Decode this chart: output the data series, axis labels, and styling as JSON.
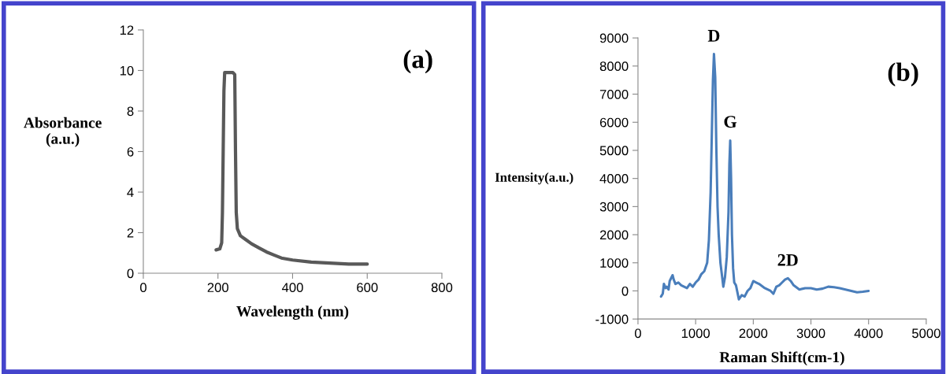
{
  "chart_data": [
    {
      "type": "line",
      "title": "(a)",
      "xlabel": "Wavelength (nm)",
      "ylabel": "Absorbance\n(a.u.)",
      "xlim": [
        0,
        800
      ],
      "xticks": [
        0,
        200,
        400,
        600,
        800
      ],
      "ylim": [
        0,
        12
      ],
      "yticks": [
        0,
        2,
        4,
        6,
        8,
        10,
        12
      ],
      "grid": false,
      "legend": false,
      "marker": "none",
      "line_style": "solid",
      "series": [
        {
          "color": "#595959",
          "x": [
            195,
            205,
            210,
            212,
            214,
            216,
            218,
            230,
            240,
            245,
            247,
            249,
            252,
            260,
            275,
            290,
            310,
            330,
            350,
            370,
            400,
            450,
            500,
            550,
            600
          ],
          "values": [
            1.15,
            1.2,
            1.5,
            3,
            6,
            9,
            9.9,
            9.9,
            9.9,
            9.8,
            6,
            3,
            2.2,
            1.85,
            1.65,
            1.45,
            1.25,
            1.05,
            0.9,
            0.75,
            0.65,
            0.55,
            0.5,
            0.45,
            0.45
          ]
        }
      ]
    },
    {
      "type": "line",
      "title": "(b)",
      "xlabel": "Raman Shift(cm-1)",
      "ylabel": "Intensity(a.u.)",
      "xlim": [
        0,
        5000
      ],
      "xticks": [
        0,
        1000,
        2000,
        3000,
        4000,
        5000
      ],
      "ylim": [
        -1000,
        9000
      ],
      "yticks": [
        -1000,
        0,
        1000,
        2000,
        3000,
        4000,
        5000,
        6000,
        7000,
        8000,
        9000
      ],
      "grid": false,
      "legend": false,
      "marker": "none",
      "line_style": "solid",
      "annotations": [
        {
          "text": "D",
          "x": 1318,
          "y": 8430
        },
        {
          "text": "G",
          "x": 1600,
          "y": 5370
        },
        {
          "text": "2D",
          "x": 2600,
          "y": 450
        }
      ],
      "series": [
        {
          "color": "#4a7ebb",
          "x": [
            400,
            430,
            450,
            480,
            500,
            530,
            550,
            600,
            620,
            650,
            700,
            750,
            800,
            850,
            900,
            950,
            1000,
            1050,
            1100,
            1150,
            1200,
            1230,
            1260,
            1280,
            1300,
            1318,
            1340,
            1360,
            1380,
            1400,
            1430,
            1460,
            1480,
            1510,
            1540,
            1570,
            1585,
            1600,
            1615,
            1630,
            1650,
            1670,
            1700,
            1750,
            1800,
            1850,
            1900,
            1950,
            2000,
            2050,
            2100,
            2200,
            2300,
            2350,
            2400,
            2450,
            2500,
            2550,
            2600,
            2650,
            2700,
            2800,
            2900,
            3000,
            3100,
            3200,
            3300,
            3400,
            3500,
            3600,
            3700,
            3800,
            3900,
            4000
          ],
          "values": [
            -200,
            -100,
            250,
            100,
            150,
            50,
            350,
            560,
            400,
            250,
            300,
            200,
            150,
            100,
            250,
            150,
            300,
            400,
            600,
            700,
            1000,
            1800,
            3500,
            5500,
            7500,
            8430,
            7600,
            5000,
            3000,
            2000,
            1000,
            500,
            150,
            500,
            1200,
            2800,
            4500,
            5350,
            4000,
            2000,
            800,
            300,
            200,
            -300,
            -150,
            -200,
            0,
            100,
            350,
            300,
            250,
            100,
            0,
            -100,
            150,
            200,
            300,
            400,
            450,
            350,
            200,
            50,
            100,
            100,
            50,
            80,
            150,
            130,
            100,
            50,
            0,
            -50,
            -30,
            0
          ]
        }
      ]
    }
  ]
}
